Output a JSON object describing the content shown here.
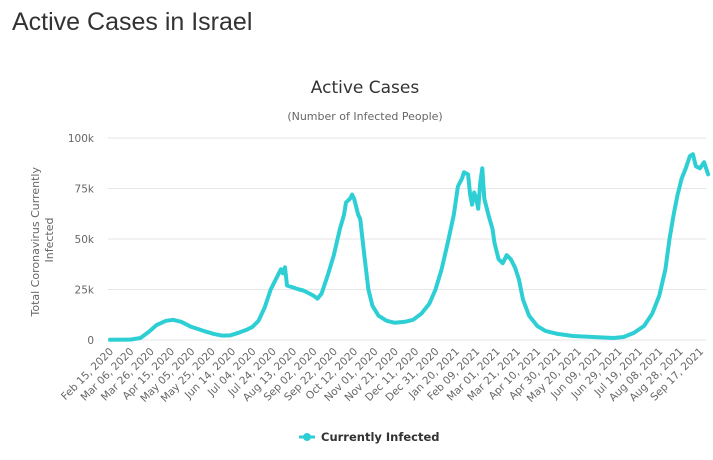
{
  "page": {
    "title": "Active Cases in Israel"
  },
  "chart_data": {
    "type": "line",
    "title": "Active Cases",
    "subtitle": "(Number of Infected People)",
    "ylabel": "Total Coronavirus Currently Infected",
    "xlabel": "",
    "ylim": [
      0,
      100000
    ],
    "y_ticks": [
      {
        "value": 0,
        "label": "0"
      },
      {
        "value": 25000,
        "label": "25k"
      },
      {
        "value": 50000,
        "label": "50k"
      },
      {
        "value": 75000,
        "label": "75k"
      },
      {
        "value": 100000,
        "label": "100k"
      }
    ],
    "x_start_date": "Feb 15, 2020",
    "x_range_days": [
      0,
      588
    ],
    "x_tick_labels": [
      "Feb 15, 2020",
      "Mar 06, 2020",
      "Mar 26, 2020",
      "Apr 15, 2020",
      "May 05, 2020",
      "May 25, 2020",
      "Jun 14, 2020",
      "Jul 04, 2020",
      "Jul 24, 2020",
      "Aug 13, 2020",
      "Sep 02, 2020",
      "Sep 22, 2020",
      "Oct 12, 2020",
      "Nov 01, 2020",
      "Nov 21, 2020",
      "Dec 11, 2020",
      "Dec 31, 2020",
      "Jan 20, 2021",
      "Feb 09, 2021",
      "Mar 01, 2021",
      "Mar 21, 2021",
      "Apr 10, 2021",
      "Apr 30, 2021",
      "May 20, 2021",
      "Jun 09, 2021",
      "Jun 29, 2021",
      "Jul 19, 2021",
      "Aug 08, 2021",
      "Aug 28, 2021",
      "Sep 17, 2021"
    ],
    "grid": true,
    "legend_position": "bottom-center",
    "series": [
      {
        "name": "Currently Infected",
        "color": "#2ecfd4",
        "points_day_value": [
          [
            0,
            100
          ],
          [
            20,
            200
          ],
          [
            30,
            1000
          ],
          [
            38,
            4000
          ],
          [
            46,
            7500
          ],
          [
            55,
            9500
          ],
          [
            62,
            10000
          ],
          [
            70,
            9000
          ],
          [
            80,
            6500
          ],
          [
            92,
            4500
          ],
          [
            102,
            3000
          ],
          [
            110,
            2200
          ],
          [
            118,
            2300
          ],
          [
            126,
            3500
          ],
          [
            134,
            5000
          ],
          [
            140,
            6500
          ],
          [
            146,
            9500
          ],
          [
            152,
            16000
          ],
          [
            158,
            25000
          ],
          [
            164,
            31000
          ],
          [
            168,
            35000
          ],
          [
            170,
            33000
          ],
          [
            172,
            36000
          ],
          [
            174,
            27000
          ],
          [
            180,
            26000
          ],
          [
            186,
            25000
          ],
          [
            190,
            24500
          ],
          [
            196,
            23000
          ],
          [
            200,
            22000
          ],
          [
            204,
            20500
          ],
          [
            208,
            23000
          ],
          [
            214,
            32000
          ],
          [
            220,
            42000
          ],
          [
            226,
            55000
          ],
          [
            230,
            62000
          ],
          [
            232,
            68000
          ],
          [
            236,
            70000
          ],
          [
            238,
            72000
          ],
          [
            240,
            70000
          ],
          [
            244,
            62000
          ],
          [
            246,
            60000
          ],
          [
            250,
            42000
          ],
          [
            254,
            25000
          ],
          [
            258,
            17000
          ],
          [
            264,
            12000
          ],
          [
            272,
            9500
          ],
          [
            280,
            8500
          ],
          [
            290,
            9000
          ],
          [
            298,
            10000
          ],
          [
            306,
            13000
          ],
          [
            314,
            18000
          ],
          [
            320,
            25000
          ],
          [
            326,
            35000
          ],
          [
            332,
            48000
          ],
          [
            338,
            62000
          ],
          [
            342,
            76000
          ],
          [
            346,
            80000
          ],
          [
            348,
            83000
          ],
          [
            352,
            82000
          ],
          [
            354,
            72000
          ],
          [
            356,
            67000
          ],
          [
            358,
            73000
          ],
          [
            360,
            70000
          ],
          [
            362,
            65000
          ],
          [
            364,
            78000
          ],
          [
            366,
            85000
          ],
          [
            368,
            70000
          ],
          [
            372,
            62000
          ],
          [
            376,
            55000
          ],
          [
            378,
            48000
          ],
          [
            382,
            40000
          ],
          [
            386,
            38000
          ],
          [
            390,
            42000
          ],
          [
            394,
            40000
          ],
          [
            398,
            36000
          ],
          [
            402,
            30000
          ],
          [
            406,
            20000
          ],
          [
            412,
            12000
          ],
          [
            420,
            7000
          ],
          [
            428,
            4500
          ],
          [
            440,
            3000
          ],
          [
            455,
            2000
          ],
          [
            475,
            1500
          ],
          [
            495,
            1000
          ],
          [
            505,
            1500
          ],
          [
            515,
            3500
          ],
          [
            525,
            7000
          ],
          [
            533,
            13000
          ],
          [
            540,
            22000
          ],
          [
            546,
            35000
          ],
          [
            550,
            50000
          ],
          [
            554,
            62000
          ],
          [
            558,
            72000
          ],
          [
            562,
            80000
          ],
          [
            566,
            85000
          ],
          [
            570,
            91000
          ],
          [
            573,
            92000
          ],
          [
            576,
            86000
          ],
          [
            580,
            85000
          ],
          [
            584,
            88000
          ],
          [
            588,
            82000
          ]
        ]
      }
    ]
  }
}
